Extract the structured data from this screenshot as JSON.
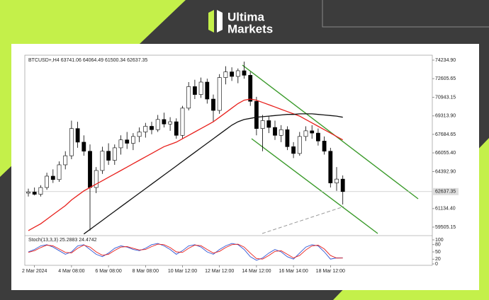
{
  "brand": {
    "line1": "Ultima",
    "line2": "Markets"
  },
  "chart_data": {
    "type": "candlestick",
    "title": "BTCUSD+,H4 63741.06 64064.49 61500.34 62637.35",
    "categories": [
      null,
      "2 Mar 2024",
      null,
      null,
      null,
      null,
      null,
      "4 Mar 08:00",
      null,
      null,
      null,
      null,
      null,
      "6 Mar 08:00",
      null,
      null,
      null,
      null,
      null,
      "8 Mar 08:00",
      null,
      null,
      null,
      null,
      null,
      "10 Mar 12:00",
      null,
      null,
      null,
      null,
      null,
      "12 Mar 12:00",
      null,
      null,
      null,
      null,
      null,
      "14 Mar 12:00",
      null,
      null,
      null,
      null,
      null,
      "16 Mar 14:00",
      null,
      null,
      null,
      null,
      null,
      "18 Mar 12:00",
      null,
      null
    ],
    "open": [
      62500,
      62600,
      62400,
      63000,
      64000,
      63700,
      65000,
      65800,
      68200,
      67000,
      66200,
      63000,
      64500,
      66200,
      65400,
      66500,
      67200,
      66900,
      67500,
      67900,
      68400,
      68100,
      69000,
      68600,
      68800,
      67600,
      70000,
      71900,
      71200,
      72300,
      70800,
      69800,
      72700,
      73200,
      72800,
      73300,
      72900,
      70600,
      68200,
      68900,
      68300,
      67600,
      68100,
      66600,
      66000,
      67500,
      68000,
      67800,
      67100,
      66200,
      63400,
      63741.06
    ],
    "high": [
      62900,
      63000,
      63200,
      64300,
      64600,
      65300,
      66200,
      68900,
      68800,
      67600,
      66800,
      64800,
      66600,
      66900,
      66800,
      67600,
      67900,
      67800,
      68300,
      68700,
      68800,
      69400,
      69600,
      69200,
      69100,
      70200,
      72300,
      72500,
      72700,
      72600,
      71200,
      73000,
      73700,
      73600,
      73500,
      74100,
      73200,
      71000,
      69400,
      69300,
      68900,
      68500,
      68400,
      67000,
      67900,
      68400,
      68500,
      68200,
      67500,
      66500,
      64800,
      64064.49
    ],
    "low": [
      62200,
      62300,
      62200,
      62800,
      63400,
      63500,
      64600,
      65500,
      66500,
      65800,
      59200,
      62500,
      64200,
      65000,
      65000,
      65900,
      66400,
      66300,
      67000,
      67400,
      67700,
      67900,
      68300,
      68000,
      67300,
      67300,
      69800,
      70800,
      70900,
      70400,
      68800,
      69500,
      72100,
      72400,
      72200,
      72600,
      70200,
      67600,
      66200,
      67800,
      67200,
      67000,
      66300,
      65600,
      65800,
      67100,
      67300,
      66700,
      65900,
      63000,
      62700,
      61500.34
    ],
    "close": [
      62600,
      62400,
      63000,
      64000,
      63700,
      65000,
      65800,
      68200,
      67000,
      66200,
      63000,
      64500,
      66200,
      65400,
      66500,
      67200,
      66900,
      67500,
      67900,
      68400,
      68100,
      69000,
      68600,
      68800,
      67600,
      70000,
      71900,
      71200,
      72300,
      70800,
      69800,
      72700,
      73200,
      72800,
      73300,
      72900,
      70600,
      68200,
      68900,
      68300,
      67600,
      68100,
      66600,
      66000,
      67500,
      68000,
      67800,
      67100,
      66200,
      63400,
      63741.06,
      62637.35
    ],
    "up_color": "#ffffff",
    "down_color": "#000000",
    "series": [
      {
        "color": "#e8201c",
        "values": [
          59200,
          59500,
          59800,
          60200,
          60600,
          61000,
          61400,
          61900,
          62300,
          62700,
          63000,
          63300,
          63600,
          63900,
          64200,
          64500,
          64800,
          65100,
          65400,
          65700,
          66000,
          66300,
          66600,
          66800,
          67000,
          67300,
          67600,
          67900,
          68200,
          68500,
          68800,
          69200,
          69600,
          70000,
          70400,
          70700,
          70800,
          70700,
          70500,
          70300,
          70100,
          69900,
          69700,
          69500,
          69300,
          69000,
          68700,
          68400,
          68100,
          67800,
          67500,
          67200
        ]
      },
      {
        "color": "#111111",
        "values": [
          null,
          null,
          null,
          null,
          null,
          null,
          null,
          null,
          null,
          58900,
          59300,
          59700,
          60100,
          60500,
          60900,
          61300,
          61700,
          62100,
          62500,
          62900,
          63300,
          63700,
          64100,
          64500,
          64900,
          65300,
          65700,
          66100,
          66500,
          66900,
          67300,
          67700,
          68100,
          68500,
          68800,
          69000,
          69100,
          69200,
          69250,
          69300,
          69350,
          69400,
          69450,
          69450,
          69500,
          69500,
          69500,
          69450,
          69400,
          69350,
          69300,
          69200
        ]
      }
    ],
    "last_price": 62637.35,
    "ylim": [
      58755,
      74672
    ],
    "yticks": [
      {
        "value": 74234.9,
        "label": "74234.90"
      },
      {
        "value": 72605.65,
        "label": "72605.65"
      },
      {
        "value": 70943.15,
        "label": "70943.15"
      },
      {
        "value": 69313.9,
        "label": "69313.90"
      },
      {
        "value": 67684.65,
        "label": "67684.65"
      },
      {
        "value": 66055.4,
        "label": "66055.40"
      },
      {
        "value": 64392.9,
        "label": "64392.90"
      },
      {
        "value": 61134.4,
        "label": "61134.40"
      },
      {
        "value": 59505.15,
        "label": "59505.15"
      }
    ],
    "stoch": {
      "title": "Stoch(13,3,3) 25.2883 24.4742",
      "ylim": [
        0,
        100
      ],
      "yticks": [
        100,
        80,
        50,
        20,
        0
      ],
      "series": [
        {
          "color": "#2f55d4",
          "values": [
            50,
            60,
            75,
            80,
            70,
            55,
            40,
            50,
            75,
            80,
            60,
            40,
            30,
            45,
            65,
            75,
            70,
            60,
            55,
            65,
            80,
            85,
            75,
            60,
            40,
            55,
            75,
            80,
            70,
            50,
            40,
            60,
            75,
            85,
            80,
            60,
            30,
            15,
            25,
            45,
            60,
            50,
            30,
            20,
            45,
            70,
            80,
            75,
            50,
            20,
            25,
            25.2883
          ]
        },
        {
          "color": "#e8201c",
          "values": [
            48,
            55,
            68,
            78,
            75,
            62,
            48,
            46,
            65,
            78,
            70,
            50,
            36,
            40,
            56,
            70,
            72,
            65,
            58,
            60,
            72,
            82,
            80,
            68,
            50,
            48,
            65,
            78,
            76,
            60,
            45,
            52,
            68,
            80,
            82,
            70,
            45,
            22,
            20,
            35,
            52,
            55,
            40,
            25,
            35,
            58,
            75,
            78,
            62,
            35,
            24,
            24.4742
          ]
        }
      ]
    }
  }
}
